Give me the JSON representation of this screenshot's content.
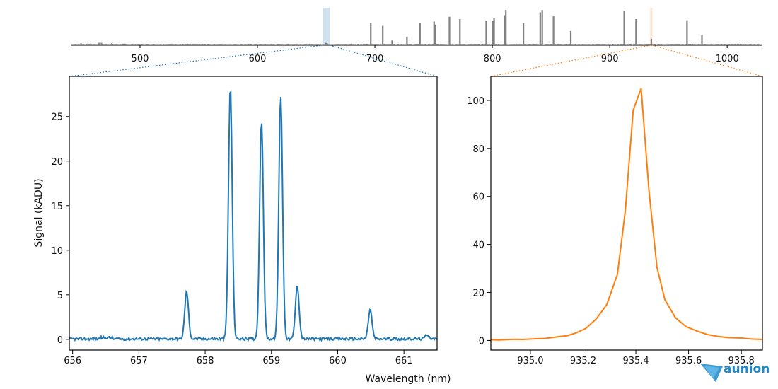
{
  "colors": {
    "overview_line": "#808080",
    "left_series": "#1f77b4",
    "right_series": "#ff7f0e",
    "logo": "#1e88c8"
  },
  "logo": {
    "name": "aunion"
  },
  "chart_data": [
    {
      "id": "overview",
      "type": "line",
      "title": "",
      "xlabel": "",
      "ylabel": "",
      "xlim": [
        441,
        1030
      ],
      "ylim": [
        0,
        10
      ],
      "xticks": [
        500,
        600,
        700,
        800,
        900,
        1000
      ],
      "grid": false,
      "highlights": [
        {
          "range": [
            655.8,
            661.6
          ],
          "color": "#1f77b4"
        },
        {
          "range": [
            934.8,
            935.9
          ],
          "color": "#ff7f0e"
        }
      ],
      "peaks": [
        [
          449.8,
          0.5
        ],
        [
          458,
          0.4
        ],
        [
          465.2,
          0.6
        ],
        [
          467.2,
          0.6
        ],
        [
          476,
          0.5
        ],
        [
          487.2,
          0.4
        ],
        [
          550,
          0.3
        ],
        [
          600,
          0.3
        ],
        [
          640,
          0.3
        ],
        [
          658.4,
          0.6
        ],
        [
          659.2,
          0.5
        ],
        [
          680,
          0.4
        ],
        [
          696.5,
          5.6
        ],
        [
          706.7,
          4.9
        ],
        [
          714.7,
          1.2
        ],
        [
          727.3,
          2.1
        ],
        [
          738.4,
          5.7
        ],
        [
          750.4,
          6.0
        ],
        [
          751.5,
          5.2
        ],
        [
          763.5,
          7.2
        ],
        [
          772.4,
          6.6
        ],
        [
          794.8,
          6.2
        ],
        [
          800.6,
          6.2
        ],
        [
          801.5,
          6.9
        ],
        [
          810.4,
          7.6
        ],
        [
          811.5,
          8.9
        ],
        [
          826.5,
          5.6
        ],
        [
          840.8,
          8.3
        ],
        [
          842.5,
          8.9
        ],
        [
          852.1,
          7.3
        ],
        [
          866.8,
          3.6
        ],
        [
          912.3,
          8.7
        ],
        [
          922.4,
          6.6
        ],
        [
          935.4,
          1.6
        ],
        [
          965.8,
          6.3
        ],
        [
          978.5,
          2.6
        ]
      ]
    },
    {
      "id": "left",
      "type": "line",
      "title": "",
      "xlabel": "",
      "ylabel": "Signal (kADU)",
      "xlim": [
        655.95,
        661.5
      ],
      "ylim": [
        -1.2,
        29.5
      ],
      "xticks": [
        656,
        657,
        658,
        659,
        660,
        661
      ],
      "yticks": [
        0,
        5,
        10,
        15,
        20,
        25
      ],
      "grid": false,
      "peaks": [
        {
          "center": 657.72,
          "height": 5.3,
          "sigma": 0.028
        },
        {
          "center": 658.38,
          "height": 28.3,
          "sigma": 0.028
        },
        {
          "center": 658.85,
          "height": 24.5,
          "sigma": 0.028
        },
        {
          "center": 659.14,
          "height": 27.3,
          "sigma": 0.028
        },
        {
          "center": 659.39,
          "height": 6.0,
          "sigma": 0.028
        },
        {
          "center": 660.49,
          "height": 3.3,
          "sigma": 0.028
        },
        {
          "center": 661.35,
          "height": 0.5,
          "sigma": 0.028
        }
      ]
    },
    {
      "id": "right",
      "type": "line",
      "title": "",
      "xlabel": "",
      "ylabel": "",
      "xlim": [
        934.85,
        935.88
      ],
      "ylim": [
        -4,
        110
      ],
      "xticks": [
        935.0,
        935.2,
        935.4,
        935.6,
        935.8
      ],
      "xtick_labels": [
        "935.0",
        "935.2",
        "935.4",
        "935.6",
        "935.8"
      ],
      "yticks": [
        0,
        20,
        40,
        60,
        80,
        100
      ],
      "grid": false,
      "x": [
        934.85,
        934.88,
        934.9,
        934.94,
        934.97,
        935.02,
        935.06,
        935.1,
        935.14,
        935.17,
        935.21,
        935.25,
        935.29,
        935.33,
        935.36,
        935.39,
        935.42,
        935.45,
        935.48,
        935.51,
        935.55,
        935.59,
        935.63,
        935.67,
        935.71,
        935.75,
        935.8,
        935.84,
        935.88
      ],
      "y": [
        0.3,
        0.2,
        0.3,
        0.5,
        0.4,
        0.7,
        0.9,
        1.5,
        2.0,
        3.0,
        5.0,
        9.0,
        15.0,
        27.5,
        54.0,
        96.0,
        105.0,
        62.0,
        30.5,
        17.0,
        9.5,
        5.8,
        4.0,
        2.5,
        1.7,
        1.2,
        1.0,
        0.6,
        0.4
      ]
    }
  ],
  "shared_xlabel": "Wavelength (nm)"
}
